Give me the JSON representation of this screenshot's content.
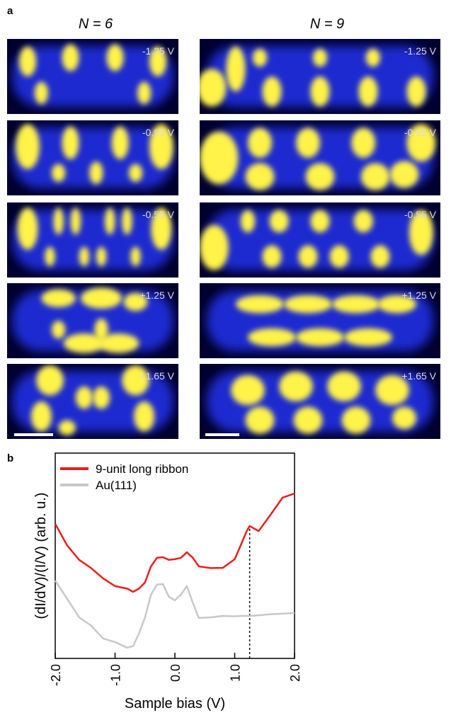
{
  "panel_a": {
    "label": "a",
    "columns": [
      {
        "title": "N = 6",
        "biases": [
          "-1.25 V",
          "-0.95 V",
          "-0.55 V",
          "+1.25 V",
          "+1.65 V"
        ]
      },
      {
        "title": "N = 9",
        "biases": [
          "-1.25 V",
          "-0.95 V",
          "-0.55 V",
          "+1.25 V",
          "+1.65 V"
        ]
      }
    ]
  },
  "chart_data": {
    "type": "line",
    "panel_label": "b",
    "xlabel": "Sample bias (V)",
    "ylabel": "(dI/dV)/(I/V) (arb. u.)",
    "xlim": [
      -2,
      2
    ],
    "ylim": [
      0,
      1
    ],
    "xticks": [
      {
        "value": -2,
        "label": "-2.0"
      },
      {
        "value": -1,
        "label": "-1.0"
      },
      {
        "value": 0,
        "label": "0.0"
      },
      {
        "value": 1,
        "label": "1.0"
      },
      {
        "value": 2,
        "label": "2.0"
      }
    ],
    "vline": 1.25,
    "x": [
      -2.0,
      -1.8,
      -1.6,
      -1.4,
      -1.2,
      -1.0,
      -0.8,
      -0.7,
      -0.6,
      -0.5,
      -0.4,
      -0.3,
      -0.2,
      -0.1,
      0.0,
      0.1,
      0.2,
      0.3,
      0.4,
      0.6,
      0.8,
      1.0,
      1.1,
      1.2,
      1.25,
      1.4,
      1.6,
      1.8,
      2.0
    ],
    "series": [
      {
        "name": "9-unit long ribbon",
        "color": "#ee1c1c",
        "values": [
          0.655,
          0.55,
          0.48,
          0.44,
          0.39,
          0.352,
          0.34,
          0.324,
          0.34,
          0.37,
          0.448,
          0.49,
          0.493,
          0.48,
          0.483,
          0.49,
          0.517,
          0.49,
          0.448,
          0.44,
          0.441,
          0.483,
          0.55,
          0.62,
          0.645,
          0.62,
          0.7,
          0.783,
          0.803
        ]
      },
      {
        "name": "Au(111)",
        "color": "#c8c8c8",
        "values": [
          0.379,
          0.29,
          0.2,
          0.16,
          0.097,
          0.08,
          0.052,
          0.06,
          0.121,
          0.2,
          0.31,
          0.36,
          0.362,
          0.3,
          0.283,
          0.31,
          0.352,
          0.27,
          0.197,
          0.2,
          0.207,
          0.205,
          0.207,
          0.207,
          0.207,
          0.21,
          0.215,
          0.218,
          0.221
        ]
      }
    ]
  }
}
